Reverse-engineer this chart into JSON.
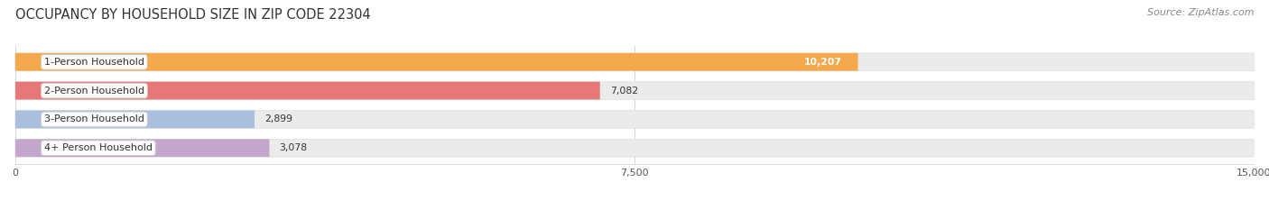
{
  "title": "OCCUPANCY BY HOUSEHOLD SIZE IN ZIP CODE 22304",
  "source": "Source: ZipAtlas.com",
  "categories": [
    "1-Person Household",
    "2-Person Household",
    "3-Person Household",
    "4+ Person Household"
  ],
  "values": [
    10207,
    7082,
    2899,
    3078
  ],
  "bar_colors": [
    "#F5A84C",
    "#E87878",
    "#AABEDE",
    "#C4A6CC"
  ],
  "bar_bg_color": "#EBEBEB",
  "bar_bg_edge_color": "#DEDEDE",
  "xlim": [
    0,
    15000
  ],
  "xticks": [
    0,
    7500,
    15000
  ],
  "background_color": "#FFFFFF",
  "title_fontsize": 10.5,
  "label_fontsize": 8,
  "value_fontsize": 7.8,
  "source_fontsize": 8,
  "bar_height": 0.62,
  "figsize": [
    14.06,
    2.33
  ],
  "dpi": 100,
  "value_inside_color": "#FFFFFF",
  "value_outside_color": "#333333",
  "label_box_facecolor": "#FFFFFF",
  "label_box_edgecolor": "#CCCCCC",
  "label_text_color": "#333333"
}
